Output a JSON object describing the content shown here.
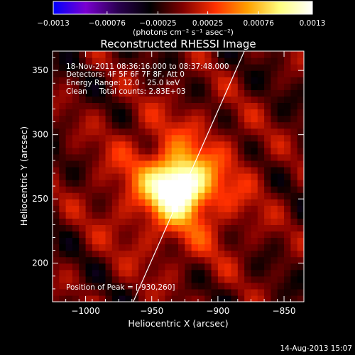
{
  "chart_data": {
    "type": "heatmap",
    "title": "Reconstructed RHESSI Image",
    "xlabel": "Heliocentric X (arcsec)",
    "ylabel": "Heliocentric Y (arcsec)",
    "xlim": [
      -1025,
      -835
    ],
    "ylim": [
      170,
      365
    ],
    "x_ticks": [
      {
        "v": -1000,
        "label": "−1000"
      },
      {
        "v": -950,
        "label": "−950"
      },
      {
        "v": -900,
        "label": "−900"
      },
      {
        "v": -850,
        "label": "−850"
      }
    ],
    "y_ticks": [
      {
        "v": 200,
        "label": "200"
      },
      {
        "v": 250,
        "label": "250"
      },
      {
        "v": 300,
        "label": "300"
      },
      {
        "v": 350,
        "label": "350"
      }
    ],
    "colorbar": {
      "unit_label": "(photons cm⁻² s⁻¹ asec⁻²)",
      "min": -0.0013,
      "max": 0.0013,
      "ticks": [
        {
          "v": -0.0013,
          "label": "−0.0013"
        },
        {
          "v": -0.00076,
          "label": "−0.00076"
        },
        {
          "v": -0.00025,
          "label": "−0.00025"
        },
        {
          "v": 0.00025,
          "label": "0.00025"
        },
        {
          "v": 0.00076,
          "label": "0.00076"
        },
        {
          "v": 0.0013,
          "label": "0.0013"
        }
      ],
      "stops": [
        "#0000ff",
        "#7a00d0",
        "#2a0050",
        "#000000",
        "#800000",
        "#ff3000",
        "#ffa000",
        "#ffff80",
        "#ffffff"
      ]
    },
    "peak": {
      "x": -930,
      "y": 260
    },
    "limb_line": [
      {
        "x": -964,
        "y": 170
      },
      {
        "x": -880,
        "y": 365
      }
    ],
    "annotations": [
      "18-Nov-2011 08:36:16.000 to 08:37:48.000",
      "Detectors: 4F 5F 6F 7F 8F, Att 0",
      "Energy Range: 12.0 - 25.0 keV",
      "Clean     Total counts: 2.83E+03"
    ],
    "peak_label": "Position of Peak = [-930,260]",
    "grid": false
  },
  "footer": {
    "timestamp": "14-Aug-2013 15:07"
  }
}
